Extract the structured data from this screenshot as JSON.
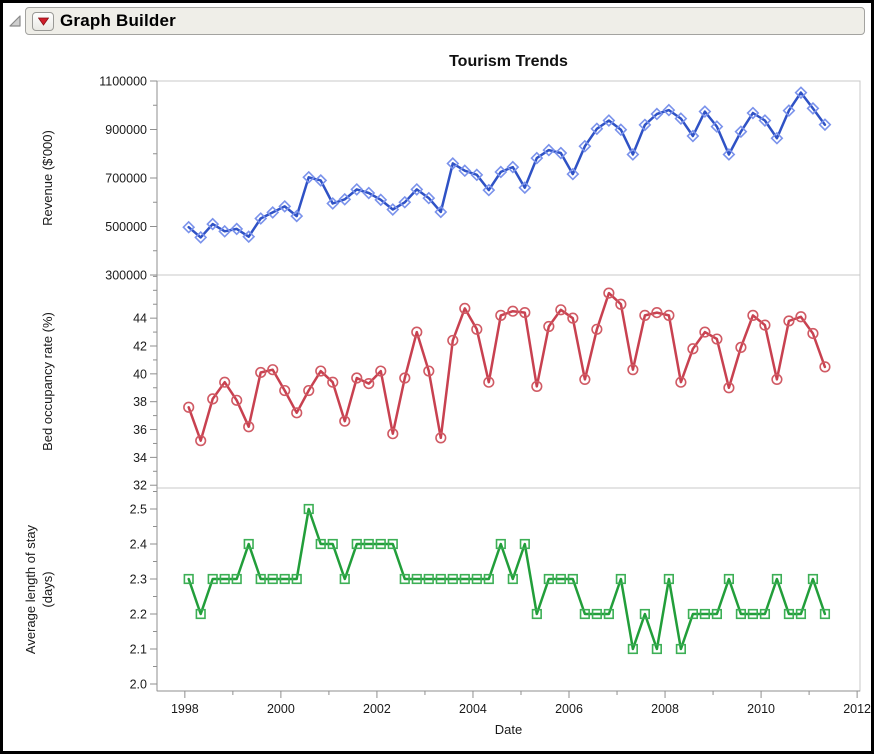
{
  "window": {
    "title": "Graph Builder"
  },
  "header": {
    "disclosure_icon": "outline-expanded-triangle",
    "menu_icon": "red-triangle-dropdown"
  },
  "colors": {
    "titlebar_bg": "#efeee8",
    "panel_frame": "#c9c9c9",
    "axis": "#8f8f8f",
    "revenue_line": "#2f52c5",
    "revenue_marker": "#7a92eb",
    "occupancy_line": "#c84150",
    "occupancy_marker": "#d05a64",
    "stay_line": "#229e3a",
    "stay_marker": "#3caf55"
  },
  "chart_data": {
    "type": "line",
    "title": "Tourism Trends",
    "xlabel": "Date",
    "x_axis": {
      "range": [
        1997.42,
        2012.06
      ],
      "major_ticks": [
        1998,
        2000,
        2002,
        2004,
        2006,
        2008,
        2010,
        2012
      ],
      "minor_ticks": [
        1999,
        2001,
        2003,
        2005,
        2007,
        2009,
        2011
      ]
    },
    "x_start": 1998.08,
    "x_step": 0.25,
    "n_points": 54,
    "frequency": "quarterly",
    "panels": [
      {
        "name": "revenue",
        "ylabel_lines": [
          "Revenue ($'000)"
        ],
        "ylim": [
          300000,
          1100000
        ],
        "y_major_ticks": [
          300000,
          500000,
          700000,
          900000,
          1100000
        ],
        "y_minor_ticks": [
          400000,
          600000,
          800000,
          1000000
        ],
        "marker": "diamond",
        "values": [
          497000,
          455000,
          510000,
          480000,
          490000,
          458000,
          533000,
          558000,
          583000,
          543000,
          703000,
          690000,
          595000,
          612000,
          653000,
          638000,
          610000,
          570000,
          600000,
          653000,
          617000,
          560000,
          760000,
          730000,
          713000,
          650000,
          725000,
          745000,
          660000,
          782000,
          815000,
          803000,
          716000,
          831000,
          903000,
          937000,
          899000,
          797000,
          919000,
          964000,
          980000,
          945000,
          873000,
          974000,
          912000,
          797000,
          891000,
          968000,
          937000,
          864000,
          978000,
          1052000,
          987000,
          920000
        ]
      },
      {
        "name": "occupancy",
        "ylabel_lines": [
          "Bed occupancy rate (%)"
        ],
        "ylim": [
          31.8,
          47.1
        ],
        "y_major_ticks": [
          32,
          34,
          36,
          38,
          40,
          42,
          44
        ],
        "y_minor_ticks": [
          33,
          35,
          37,
          39,
          41,
          43,
          45,
          46,
          47
        ],
        "marker": "circle",
        "values": [
          37.6,
          35.2,
          38.2,
          39.4,
          38.1,
          36.2,
          40.1,
          40.3,
          38.8,
          37.2,
          38.8,
          40.2,
          39.4,
          36.6,
          39.7,
          39.3,
          40.2,
          35.7,
          39.7,
          43.0,
          40.2,
          35.4,
          42.4,
          44.7,
          43.2,
          39.4,
          44.2,
          44.5,
          44.4,
          39.1,
          43.4,
          44.6,
          44.0,
          39.6,
          43.2,
          45.8,
          45.0,
          40.3,
          44.2,
          44.4,
          44.2,
          39.4,
          41.8,
          43.0,
          42.5,
          39.0,
          41.9,
          44.2,
          43.5,
          39.6,
          43.8,
          44.1,
          42.9,
          40.5
        ]
      },
      {
        "name": "stay",
        "ylabel_lines": [
          "Average length of stay",
          "(days)"
        ],
        "ylim": [
          1.98,
          2.56
        ],
        "y_major_ticks": [
          2.0,
          2.1,
          2.2,
          2.3,
          2.4,
          2.5
        ],
        "y_minor_ticks": [
          2.05,
          2.15,
          2.25,
          2.35,
          2.45,
          2.55
        ],
        "marker": "square",
        "values": [
          2.3,
          2.2,
          2.3,
          2.3,
          2.3,
          2.4,
          2.3,
          2.3,
          2.3,
          2.3,
          2.5,
          2.4,
          2.4,
          2.3,
          2.4,
          2.4,
          2.4,
          2.4,
          2.3,
          2.3,
          2.3,
          2.3,
          2.3,
          2.3,
          2.3,
          2.3,
          2.4,
          2.3,
          2.4,
          2.2,
          2.3,
          2.3,
          2.3,
          2.2,
          2.2,
          2.2,
          2.3,
          2.1,
          2.2,
          2.1,
          2.3,
          2.1,
          2.2,
          2.2,
          2.2,
          2.3,
          2.2,
          2.2,
          2.2,
          2.3,
          2.2,
          2.2,
          2.3,
          2.2
        ]
      }
    ]
  }
}
